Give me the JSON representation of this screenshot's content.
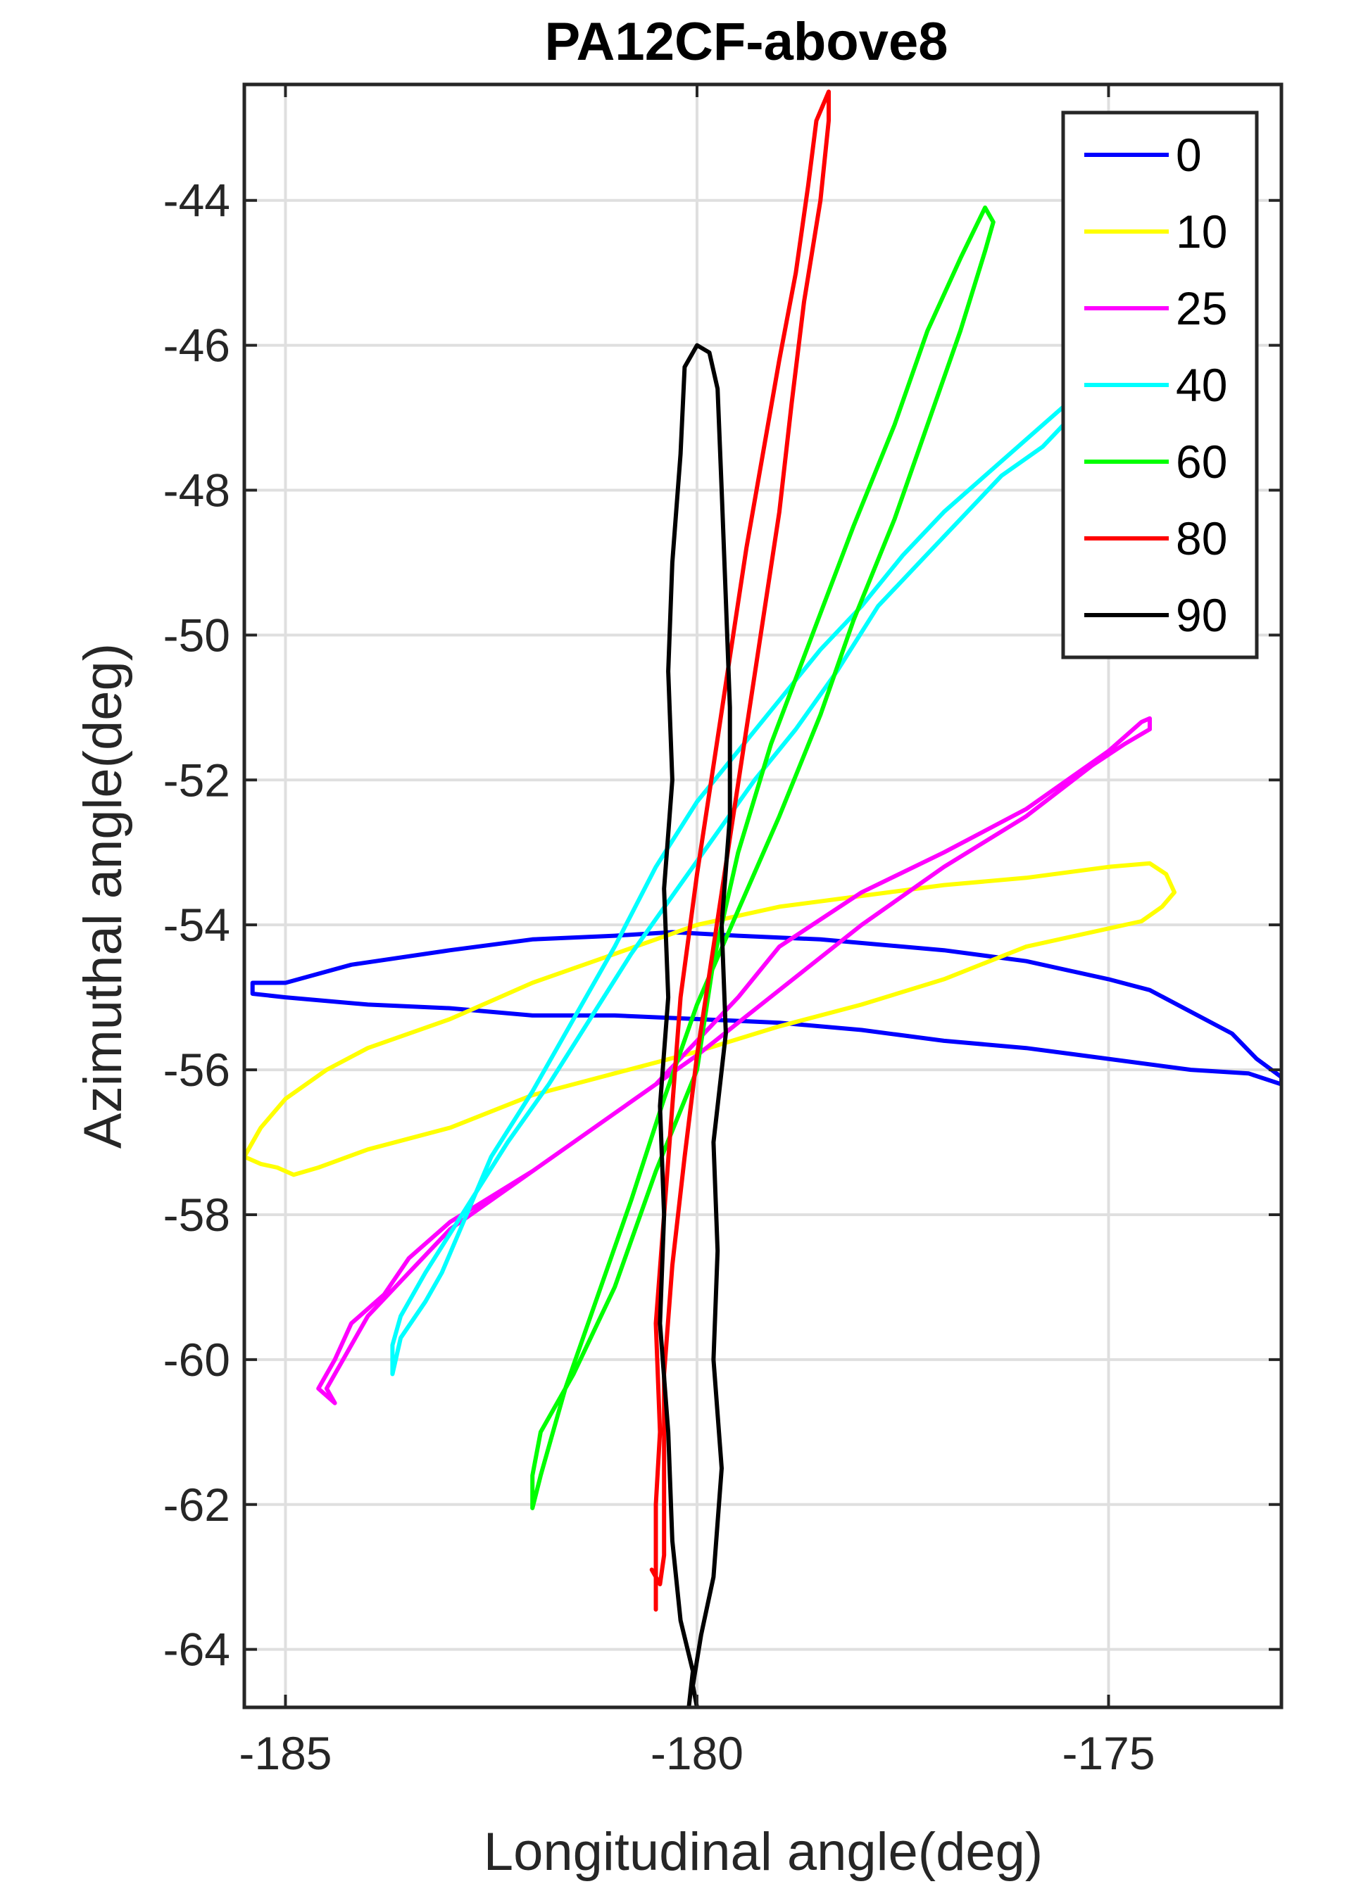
{
  "chart_data": {
    "type": "line",
    "title": "PA12CF-above8",
    "xlabel": "Longitudinal angle(deg)",
    "ylabel": "Azimuthal angle(deg)",
    "xlim": [
      -185.5,
      -172.9
    ],
    "ylim": [
      -64.8,
      -42.4
    ],
    "xticks": [
      -185,
      -180,
      -175
    ],
    "xtick_labels": [
      "-185",
      "-180",
      "-175"
    ],
    "yticks": [
      -64,
      -62,
      -60,
      -58,
      -56,
      -54,
      -52,
      -50,
      -48,
      -46,
      -44
    ],
    "ytick_labels": [
      "-64",
      "-62",
      "-60",
      "-58",
      "-56",
      "-54",
      "-52",
      "-50",
      "-48",
      "-46",
      "-44"
    ],
    "grid": true,
    "legend_position": "top-right",
    "series": [
      {
        "name": "0",
        "color": "#0000ff",
        "points": [
          [
            -185.4,
            -54.8
          ],
          [
            -185.0,
            -54.8
          ],
          [
            -184.2,
            -54.55
          ],
          [
            -183.0,
            -54.35
          ],
          [
            -182.0,
            -54.2
          ],
          [
            -181.0,
            -54.15
          ],
          [
            -180.3,
            -54.1
          ],
          [
            -179.5,
            -54.15
          ],
          [
            -178.5,
            -54.2
          ],
          [
            -177.0,
            -54.35
          ],
          [
            -176.0,
            -54.5
          ],
          [
            -175.0,
            -54.75
          ],
          [
            -174.5,
            -54.9
          ],
          [
            -174.0,
            -55.2
          ],
          [
            -173.5,
            -55.5
          ],
          [
            -173.2,
            -55.85
          ],
          [
            -172.9,
            -56.1
          ],
          [
            -172.9,
            -56.2
          ],
          [
            -173.3,
            -56.05
          ],
          [
            -174.0,
            -56.0
          ],
          [
            -175.0,
            -55.85
          ],
          [
            -176.0,
            -55.7
          ],
          [
            -177.0,
            -55.6
          ],
          [
            -178.0,
            -55.45
          ],
          [
            -179.0,
            -55.35
          ],
          [
            -180.0,
            -55.3
          ],
          [
            -181.0,
            -55.25
          ],
          [
            -182.0,
            -55.25
          ],
          [
            -183.0,
            -55.15
          ],
          [
            -184.0,
            -55.1
          ],
          [
            -185.0,
            -55.0
          ],
          [
            -185.4,
            -54.95
          ],
          [
            -185.4,
            -54.8
          ]
        ]
      },
      {
        "name": "10",
        "color": "#ffff00",
        "points": [
          [
            -185.5,
            -57.2
          ],
          [
            -185.3,
            -56.8
          ],
          [
            -185.0,
            -56.4
          ],
          [
            -184.5,
            -56.0
          ],
          [
            -184.0,
            -55.7
          ],
          [
            -183.0,
            -55.3
          ],
          [
            -182.0,
            -54.8
          ],
          [
            -181.0,
            -54.4
          ],
          [
            -180.0,
            -54.0
          ],
          [
            -179.0,
            -53.75
          ],
          [
            -178.0,
            -53.6
          ],
          [
            -177.0,
            -53.45
          ],
          [
            -176.0,
            -53.35
          ],
          [
            -175.0,
            -53.2
          ],
          [
            -174.5,
            -53.15
          ],
          [
            -174.3,
            -53.3
          ],
          [
            -174.2,
            -53.55
          ],
          [
            -174.35,
            -53.75
          ],
          [
            -174.6,
            -53.95
          ],
          [
            -175.0,
            -54.05
          ],
          [
            -176.0,
            -54.3
          ],
          [
            -177.0,
            -54.75
          ],
          [
            -178.0,
            -55.1
          ],
          [
            -179.0,
            -55.4
          ],
          [
            -180.0,
            -55.75
          ],
          [
            -181.0,
            -56.05
          ],
          [
            -182.0,
            -56.35
          ],
          [
            -183.0,
            -56.8
          ],
          [
            -184.0,
            -57.1
          ],
          [
            -184.6,
            -57.35
          ],
          [
            -184.9,
            -57.45
          ],
          [
            -185.1,
            -57.35
          ],
          [
            -185.3,
            -57.3
          ],
          [
            -185.5,
            -57.2
          ]
        ]
      },
      {
        "name": "25",
        "color": "#ff00ff",
        "points": [
          [
            -184.6,
            -60.4
          ],
          [
            -184.4,
            -60.0
          ],
          [
            -184.2,
            -59.5
          ],
          [
            -183.8,
            -59.1
          ],
          [
            -183.5,
            -58.6
          ],
          [
            -183.0,
            -58.1
          ],
          [
            -182.0,
            -57.4
          ],
          [
            -181.0,
            -56.6
          ],
          [
            -180.5,
            -56.2
          ],
          [
            -180.0,
            -55.6
          ],
          [
            -179.5,
            -55.0
          ],
          [
            -179.0,
            -54.3
          ],
          [
            -178.0,
            -53.55
          ],
          [
            -177.0,
            -53.0
          ],
          [
            -176.0,
            -52.4
          ],
          [
            -175.5,
            -52.0
          ],
          [
            -175.0,
            -51.6
          ],
          [
            -174.8,
            -51.4
          ],
          [
            -174.6,
            -51.2
          ],
          [
            -174.5,
            -51.15
          ],
          [
            -174.5,
            -51.3
          ],
          [
            -174.8,
            -51.5
          ],
          [
            -175.2,
            -51.8
          ],
          [
            -176.0,
            -52.5
          ],
          [
            -177.0,
            -53.2
          ],
          [
            -178.0,
            -54.0
          ],
          [
            -179.0,
            -54.9
          ],
          [
            -180.0,
            -55.8
          ],
          [
            -181.0,
            -56.6
          ],
          [
            -182.0,
            -57.4
          ],
          [
            -183.0,
            -58.2
          ],
          [
            -183.5,
            -58.8
          ],
          [
            -184.0,
            -59.4
          ],
          [
            -184.3,
            -60.0
          ],
          [
            -184.5,
            -60.4
          ],
          [
            -184.4,
            -60.6
          ],
          [
            -184.6,
            -60.4
          ]
        ]
      },
      {
        "name": "40",
        "color": "#00ffff",
        "points": [
          [
            -183.7,
            -60.2
          ],
          [
            -183.6,
            -59.7
          ],
          [
            -183.3,
            -59.2
          ],
          [
            -183.1,
            -58.8
          ],
          [
            -182.8,
            -58.0
          ],
          [
            -182.5,
            -57.2
          ],
          [
            -182.0,
            -56.3
          ],
          [
            -181.5,
            -55.3
          ],
          [
            -181.0,
            -54.3
          ],
          [
            -180.5,
            -53.2
          ],
          [
            -180.0,
            -52.3
          ],
          [
            -179.5,
            -51.6
          ],
          [
            -179.0,
            -50.9
          ],
          [
            -178.5,
            -50.2
          ],
          [
            -178.0,
            -49.6
          ],
          [
            -177.5,
            -48.9
          ],
          [
            -177.0,
            -48.3
          ],
          [
            -176.5,
            -47.8
          ],
          [
            -176.0,
            -47.3
          ],
          [
            -175.5,
            -46.8
          ],
          [
            -175.2,
            -46.4
          ],
          [
            -175.0,
            -46.2
          ],
          [
            -175.05,
            -46.35
          ],
          [
            -175.3,
            -46.8
          ],
          [
            -175.8,
            -47.4
          ],
          [
            -176.3,
            -47.8
          ],
          [
            -176.8,
            -48.4
          ],
          [
            -177.3,
            -49.0
          ],
          [
            -177.8,
            -49.6
          ],
          [
            -178.3,
            -50.5
          ],
          [
            -178.8,
            -51.3
          ],
          [
            -179.3,
            -52.0
          ],
          [
            -179.8,
            -52.8
          ],
          [
            -180.3,
            -53.6
          ],
          [
            -180.8,
            -54.4
          ],
          [
            -181.3,
            -55.3
          ],
          [
            -181.8,
            -56.2
          ],
          [
            -182.3,
            -57.0
          ],
          [
            -182.8,
            -57.9
          ],
          [
            -183.3,
            -58.8
          ],
          [
            -183.6,
            -59.4
          ],
          [
            -183.7,
            -59.8
          ],
          [
            -183.7,
            -60.2
          ]
        ]
      },
      {
        "name": "60",
        "color": "#00ff00",
        "points": [
          [
            -182.0,
            -62.05
          ],
          [
            -182.0,
            -61.6
          ],
          [
            -181.9,
            -61.0
          ],
          [
            -181.5,
            -60.2
          ],
          [
            -181.0,
            -59.0
          ],
          [
            -180.5,
            -57.4
          ],
          [
            -180.0,
            -56.0
          ],
          [
            -179.8,
            -54.5
          ],
          [
            -179.5,
            -53.0
          ],
          [
            -179.1,
            -51.5
          ],
          [
            -178.6,
            -50.0
          ],
          [
            -178.1,
            -48.5
          ],
          [
            -177.6,
            -47.1
          ],
          [
            -177.2,
            -45.8
          ],
          [
            -176.8,
            -44.8
          ],
          [
            -176.5,
            -44.1
          ],
          [
            -176.4,
            -44.3
          ],
          [
            -176.5,
            -44.7
          ],
          [
            -176.8,
            -45.8
          ],
          [
            -177.2,
            -47.1
          ],
          [
            -177.6,
            -48.4
          ],
          [
            -178.1,
            -49.8
          ],
          [
            -178.5,
            -51.1
          ],
          [
            -179.0,
            -52.5
          ],
          [
            -179.5,
            -53.8
          ],
          [
            -180.0,
            -55.1
          ],
          [
            -180.4,
            -56.4
          ],
          [
            -180.8,
            -57.8
          ],
          [
            -181.2,
            -59.1
          ],
          [
            -181.6,
            -60.4
          ],
          [
            -181.9,
            -61.6
          ],
          [
            -182.0,
            -62.05
          ]
        ]
      },
      {
        "name": "80",
        "color": "#ff0000",
        "points": [
          [
            -180.5,
            -63.45
          ],
          [
            -180.5,
            -62.9
          ],
          [
            -180.5,
            -62.0
          ],
          [
            -180.45,
            -61.0
          ],
          [
            -180.5,
            -59.5
          ],
          [
            -180.4,
            -58.0
          ],
          [
            -180.3,
            -56.5
          ],
          [
            -180.2,
            -55.0
          ],
          [
            -180.0,
            -53.3
          ],
          [
            -179.8,
            -51.8
          ],
          [
            -179.6,
            -50.3
          ],
          [
            -179.4,
            -48.8
          ],
          [
            -179.2,
            -47.5
          ],
          [
            -179.0,
            -46.2
          ],
          [
            -178.8,
            -45.0
          ],
          [
            -178.65,
            -43.8
          ],
          [
            -178.55,
            -42.9
          ],
          [
            -178.4,
            -42.5
          ],
          [
            -178.4,
            -42.9
          ],
          [
            -178.5,
            -44.0
          ],
          [
            -178.7,
            -45.4
          ],
          [
            -178.85,
            -46.8
          ],
          [
            -179.0,
            -48.3
          ],
          [
            -179.2,
            -49.8
          ],
          [
            -179.4,
            -51.3
          ],
          [
            -179.6,
            -52.8
          ],
          [
            -179.8,
            -54.3
          ],
          [
            -180.0,
            -55.8
          ],
          [
            -180.15,
            -57.2
          ],
          [
            -180.3,
            -58.7
          ],
          [
            -180.4,
            -60.2
          ],
          [
            -180.4,
            -61.5
          ],
          [
            -180.4,
            -62.7
          ],
          [
            -180.45,
            -63.1
          ],
          [
            -180.55,
            -62.9
          ]
        ]
      },
      {
        "name": "90",
        "color": "#000000",
        "points": [
          [
            -180.1,
            -64.8
          ],
          [
            -180.05,
            -64.3
          ],
          [
            -180.2,
            -63.6
          ],
          [
            -180.3,
            -62.5
          ],
          [
            -180.35,
            -61.0
          ],
          [
            -180.45,
            -59.5
          ],
          [
            -180.4,
            -58.0
          ],
          [
            -180.45,
            -56.5
          ],
          [
            -180.35,
            -55.0
          ],
          [
            -180.4,
            -53.5
          ],
          [
            -180.3,
            -52.0
          ],
          [
            -180.35,
            -50.5
          ],
          [
            -180.3,
            -49.0
          ],
          [
            -180.2,
            -47.5
          ],
          [
            -180.15,
            -46.3
          ],
          [
            -180.0,
            -46.0
          ],
          [
            -179.85,
            -46.1
          ],
          [
            -179.75,
            -46.6
          ],
          [
            -179.7,
            -48.0
          ],
          [
            -179.65,
            -49.5
          ],
          [
            -179.6,
            -51.0
          ],
          [
            -179.6,
            -52.5
          ],
          [
            -179.7,
            -54.0
          ],
          [
            -179.65,
            -55.5
          ],
          [
            -179.8,
            -57.0
          ],
          [
            -179.75,
            -58.5
          ],
          [
            -179.8,
            -60.0
          ],
          [
            -179.7,
            -61.5
          ],
          [
            -179.8,
            -63.0
          ],
          [
            -179.95,
            -63.8
          ],
          [
            -180.05,
            -64.5
          ],
          [
            -180.0,
            -64.8
          ]
        ]
      }
    ]
  }
}
